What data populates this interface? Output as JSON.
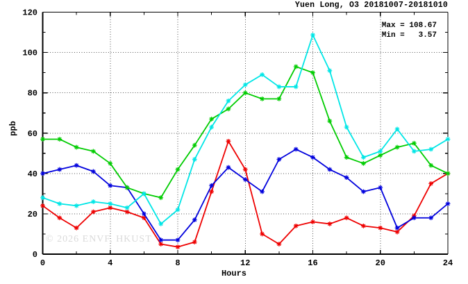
{
  "title": "Yuen Long, O3 20181007-20181010",
  "stats": {
    "max_label": "Max = 108.67",
    "min_label": "Min =   3.57"
  },
  "watermark": "© 2026 ENVF, HKUST",
  "chart_data": {
    "type": "line",
    "title": "Yuen Long, O3 20181007-20181010",
    "xlabel": "Hours",
    "ylabel": "ppb",
    "xlim": [
      0,
      24
    ],
    "ylim": [
      0,
      120
    ],
    "xticks_labeled": [
      0,
      4,
      8,
      12,
      16,
      20,
      24
    ],
    "xtick_minor_step": 2,
    "yticks_labeled": [
      0,
      20,
      40,
      60,
      80,
      100,
      120
    ],
    "ytick_minor_step": 10,
    "grid": true,
    "grid_x_at": [
      4,
      8,
      12,
      16,
      20
    ],
    "grid_y_at": [
      20,
      40,
      60,
      80,
      100
    ],
    "legend_position": "none",
    "marker": "asterisk",
    "annotations": {
      "max": 108.67,
      "min": 3.57
    },
    "x": [
      0,
      1,
      2,
      3,
      4,
      5,
      6,
      7,
      8,
      9,
      10,
      11,
      12,
      13,
      14,
      15,
      16,
      17,
      18,
      19,
      20,
      21,
      22,
      23,
      24
    ],
    "series": [
      {
        "name": "red",
        "color": "#ee0000",
        "values": [
          24,
          18,
          13,
          21,
          23,
          21,
          18,
          5,
          3.57,
          6,
          31,
          56,
          42,
          10,
          5,
          14,
          16,
          15,
          18,
          14,
          13,
          11,
          19,
          35,
          40
        ]
      },
      {
        "name": "blue",
        "color": "#0000dd",
        "values": [
          40,
          42,
          44,
          41,
          34,
          33,
          20,
          7,
          7,
          17,
          34,
          43,
          37,
          31,
          47,
          52,
          48,
          42,
          38,
          31,
          33,
          13,
          18,
          18,
          25
        ]
      },
      {
        "name": "green",
        "color": "#00cc00",
        "values": [
          57,
          57,
          53,
          51,
          45,
          33,
          30,
          28,
          42,
          54,
          67,
          72,
          80,
          77,
          77,
          93,
          90,
          66,
          48,
          45,
          49,
          53,
          55,
          44,
          40
        ]
      },
      {
        "name": "cyan",
        "color": "#00e6e6",
        "values": [
          28,
          25,
          24,
          26,
          25,
          23,
          30,
          15,
          22,
          47,
          63,
          76,
          84,
          89,
          83,
          83,
          108.67,
          91,
          63,
          48,
          51,
          62,
          51,
          52,
          57
        ]
      }
    ]
  },
  "frame_color": "#000000",
  "grid_color": "#555555"
}
